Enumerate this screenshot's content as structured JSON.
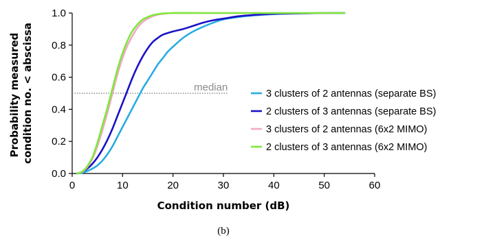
{
  "chart_data": {
    "type": "line",
    "title": "",
    "xlabel": "Condition number (dB)",
    "ylabel_lines": [
      "Probability measured",
      "condition no. < abscissa"
    ],
    "xlim": [
      0,
      60
    ],
    "ylim": [
      0,
      1.0
    ],
    "xticks": [
      "0",
      "10",
      "20",
      "30",
      "40",
      "50",
      "60"
    ],
    "yticks": [
      "0.0",
      "0.2",
      "0.4",
      "0.6",
      "0.8",
      "1.0"
    ],
    "grid": false,
    "legend_position": "right",
    "caption": "(b)",
    "reference_line": {
      "label": "median",
      "y": 0.5,
      "x_range": [
        0,
        31
      ],
      "color": "#8a8a8a"
    },
    "series": [
      {
        "name": "3 clusters of 2 antennas (separate BS)",
        "color": "#29abe2",
        "points": [
          [
            1,
            0
          ],
          [
            2,
            0.005
          ],
          [
            3,
            0.015
          ],
          [
            4,
            0.03
          ],
          [
            5,
            0.05
          ],
          [
            6,
            0.08
          ],
          [
            7,
            0.12
          ],
          [
            8,
            0.17
          ],
          [
            9,
            0.23
          ],
          [
            10,
            0.29
          ],
          [
            11,
            0.35
          ],
          [
            12,
            0.41
          ],
          [
            13,
            0.47
          ],
          [
            14,
            0.53
          ],
          [
            15,
            0.58
          ],
          [
            16,
            0.63
          ],
          [
            17,
            0.68
          ],
          [
            18,
            0.72
          ],
          [
            19,
            0.76
          ],
          [
            20,
            0.79
          ],
          [
            22,
            0.845
          ],
          [
            24,
            0.885
          ],
          [
            26,
            0.915
          ],
          [
            28,
            0.94
          ],
          [
            30,
            0.96
          ],
          [
            33,
            0.975
          ],
          [
            36,
            0.985
          ],
          [
            40,
            0.993
          ],
          [
            45,
            0.997
          ],
          [
            50,
            1.0
          ],
          [
            54,
            1.0
          ]
        ]
      },
      {
        "name": "2 clusters of 3 antennas (separate BS)",
        "color": "#1a10c8",
        "points": [
          [
            1,
            0
          ],
          [
            2,
            0.01
          ],
          [
            3,
            0.03
          ],
          [
            4,
            0.06
          ],
          [
            5,
            0.1
          ],
          [
            6,
            0.15
          ],
          [
            7,
            0.21
          ],
          [
            8,
            0.28
          ],
          [
            9,
            0.36
          ],
          [
            10,
            0.44
          ],
          [
            11,
            0.52
          ],
          [
            12,
            0.6
          ],
          [
            13,
            0.67
          ],
          [
            14,
            0.73
          ],
          [
            15,
            0.78
          ],
          [
            16,
            0.82
          ],
          [
            17,
            0.845
          ],
          [
            18,
            0.865
          ],
          [
            20,
            0.885
          ],
          [
            22,
            0.9
          ],
          [
            24,
            0.92
          ],
          [
            26,
            0.94
          ],
          [
            28,
            0.955
          ],
          [
            30,
            0.965
          ],
          [
            33,
            0.98
          ],
          [
            36,
            0.988
          ],
          [
            40,
            0.995
          ],
          [
            45,
            0.998
          ],
          [
            50,
            1.0
          ],
          [
            54,
            1.0
          ]
        ]
      },
      {
        "name": "3 clusters of 2 antennas (6x2 MIMO)",
        "color": "#f2a8c8",
        "points": [
          [
            1,
            0
          ],
          [
            2,
            0.01
          ],
          [
            3,
            0.04
          ],
          [
            4,
            0.09
          ],
          [
            5,
            0.17
          ],
          [
            6,
            0.27
          ],
          [
            7,
            0.38
          ],
          [
            8,
            0.5
          ],
          [
            9,
            0.62
          ],
          [
            10,
            0.72
          ],
          [
            11,
            0.8
          ],
          [
            12,
            0.86
          ],
          [
            13,
            0.91
          ],
          [
            14,
            0.945
          ],
          [
            15,
            0.965
          ],
          [
            16,
            0.98
          ],
          [
            17,
            0.99
          ],
          [
            18,
            0.995
          ],
          [
            20,
            1.0
          ],
          [
            25,
            1.0
          ],
          [
            30,
            1.0
          ],
          [
            40,
            1.0
          ],
          [
            50,
            1.0
          ],
          [
            54,
            1.0
          ]
        ]
      },
      {
        "name": "2 clusters of 3 antennas (6x2 MIMO)",
        "color": "#7ee83a",
        "points": [
          [
            1,
            0
          ],
          [
            2,
            0.012
          ],
          [
            3,
            0.045
          ],
          [
            4,
            0.1
          ],
          [
            5,
            0.19
          ],
          [
            6,
            0.3
          ],
          [
            7,
            0.41
          ],
          [
            8,
            0.53
          ],
          [
            9,
            0.65
          ],
          [
            10,
            0.75
          ],
          [
            11,
            0.83
          ],
          [
            12,
            0.89
          ],
          [
            13,
            0.93
          ],
          [
            14,
            0.96
          ],
          [
            15,
            0.975
          ],
          [
            16,
            0.987
          ],
          [
            17,
            0.993
          ],
          [
            18,
            0.997
          ],
          [
            20,
            1.0
          ],
          [
            25,
            1.0
          ],
          [
            30,
            1.0
          ],
          [
            40,
            1.0
          ],
          [
            50,
            1.0
          ],
          [
            54,
            1.0
          ]
        ]
      }
    ]
  }
}
